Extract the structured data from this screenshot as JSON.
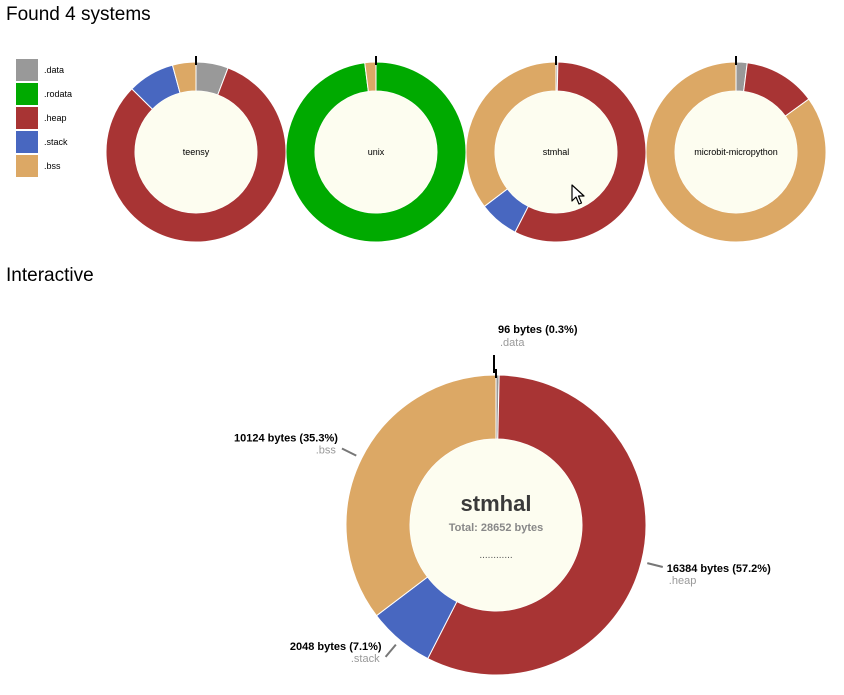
{
  "headings": {
    "found": "Found 4 systems",
    "interactive": "Interactive"
  },
  "legend": [
    {
      "label": ".data",
      "color": "#999999"
    },
    {
      "label": ".rodata",
      "color": "#00aa00"
    },
    {
      "label": ".heap",
      "color": "#a83434"
    },
    {
      "label": ".stack",
      "color": "#4867c0"
    },
    {
      "label": ".bss",
      "color": "#dca865"
    }
  ],
  "chart_data": [
    {
      "type": "pie",
      "name": "teensy",
      "series": [
        {
          "name": ".data",
          "value": 5.5,
          "color": "#999999"
        },
        {
          "name": ".heap",
          "value": 77.5,
          "color": "#a83434"
        },
        {
          "name": ".stack",
          "value": 8,
          "color": "#4867c0"
        },
        {
          "name": ".bss",
          "value": 4,
          "color": "#dca865"
        }
      ]
    },
    {
      "type": "pie",
      "name": "unix",
      "series": [
        {
          "name": ".rodata",
          "value": 98,
          "color": "#00aa00"
        },
        {
          "name": ".bss",
          "value": 2,
          "color": "#dca865"
        }
      ]
    },
    {
      "type": "pie",
      "name": "stmhal",
      "series": [
        {
          "name": ".data",
          "value": 96,
          "color": "#999999"
        },
        {
          "name": ".heap",
          "value": 16384,
          "color": "#a83434"
        },
        {
          "name": ".stack",
          "value": 2048,
          "color": "#4867c0"
        },
        {
          "name": ".bss",
          "value": 10124,
          "color": "#dca865"
        }
      ]
    },
    {
      "type": "pie",
      "name": "microbit-micropython",
      "series": [
        {
          "name": ".data",
          "value": 2,
          "color": "#999999"
        },
        {
          "name": ".heap",
          "value": 13,
          "color": "#a83434"
        },
        {
          "name": ".bss",
          "value": 85,
          "color": "#dca865"
        }
      ]
    },
    {
      "type": "pie",
      "name": "stmhal",
      "total_label": "Total: 28652 bytes",
      "dots": "............",
      "series": [
        {
          "name": ".data",
          "value": 96,
          "label": "96 bytes (0.3%)",
          "color": "#999999"
        },
        {
          "name": ".heap",
          "value": 16384,
          "label": "16384 bytes (57.2%)",
          "color": "#a83434"
        },
        {
          "name": ".stack",
          "value": 2048,
          "label": "2048 bytes (7.1%)",
          "color": "#4867c0"
        },
        {
          "name": ".bss",
          "value": 10124,
          "label": "10124 bytes (35.3%)",
          "color": "#dca865"
        }
      ]
    }
  ]
}
